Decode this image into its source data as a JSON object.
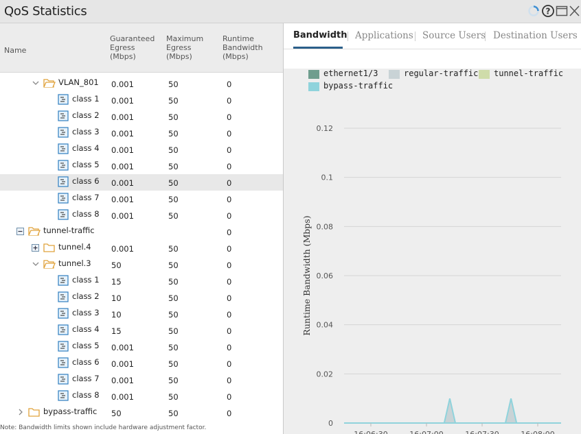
{
  "window": {
    "title": "QoS Statistics"
  },
  "table": {
    "headers": {
      "name": "Name",
      "guaranteed": "Guaranteed\nEgress\n(Mbps)",
      "maximum": "Maximum\nEgress\n(Mbps)",
      "runtime": "Runtime\nBandwidth\n(Mbps)"
    },
    "rows": [
      {
        "name": "VLAN_801",
        "g": "0.001",
        "m": "50",
        "r": "0"
      },
      {
        "name": "class 1",
        "g": "0.001",
        "m": "50",
        "r": "0"
      },
      {
        "name": "class 2",
        "g": "0.001",
        "m": "50",
        "r": "0"
      },
      {
        "name": "class 3",
        "g": "0.001",
        "m": "50",
        "r": "0"
      },
      {
        "name": "class 4",
        "g": "0.001",
        "m": "50",
        "r": "0"
      },
      {
        "name": "class 5",
        "g": "0.001",
        "m": "50",
        "r": "0"
      },
      {
        "name": "class 6",
        "g": "0.001",
        "m": "50",
        "r": "0"
      },
      {
        "name": "class 7",
        "g": "0.001",
        "m": "50",
        "r": "0"
      },
      {
        "name": "class 8",
        "g": "0.001",
        "m": "50",
        "r": "0"
      },
      {
        "name": "tunnel-traffic",
        "g": "",
        "m": "",
        "r": "0"
      },
      {
        "name": "tunnel.4",
        "g": "0.001",
        "m": "50",
        "r": "0"
      },
      {
        "name": "tunnel.3",
        "g": "50",
        "m": "50",
        "r": "0"
      },
      {
        "name": "class 1",
        "g": "15",
        "m": "50",
        "r": "0"
      },
      {
        "name": "class 2",
        "g": "10",
        "m": "50",
        "r": "0"
      },
      {
        "name": "class 3",
        "g": "10",
        "m": "50",
        "r": "0"
      },
      {
        "name": "class 4",
        "g": "15",
        "m": "50",
        "r": "0"
      },
      {
        "name": "class 5",
        "g": "0.001",
        "m": "50",
        "r": "0"
      },
      {
        "name": "class 6",
        "g": "0.001",
        "m": "50",
        "r": "0"
      },
      {
        "name": "class 7",
        "g": "0.001",
        "m": "50",
        "r": "0"
      },
      {
        "name": "class 8",
        "g": "0.001",
        "m": "50",
        "r": "0"
      },
      {
        "name": "bypass-traffic",
        "g": "50",
        "m": "50",
        "r": "0"
      }
    ],
    "note": "Note: Bandwidth limits shown include hardware adjustment factor."
  },
  "tabs": [
    "Bandwidth",
    "Applications",
    "Source Users",
    "Destination Users"
  ],
  "legend": [
    {
      "name": "ethernet1/3",
      "color": "#6f9e8e"
    },
    {
      "name": "regular-traffic",
      "color": "#c9d3d6"
    },
    {
      "name": "tunnel-traffic",
      "color": "#cfdcaa"
    },
    {
      "name": "bypass-traffic",
      "color": "#8fd3dc"
    }
  ],
  "chart_data": {
    "type": "area",
    "ylabel": "Runtime Bandwidth (Mbps)",
    "ylim": [
      0,
      0.12
    ],
    "yticks": [
      "0",
      "0.02",
      "0.04",
      "0.06",
      "0.08",
      "0.1",
      "0.12"
    ],
    "xticks": [
      "16:06:30",
      "16:07:00",
      "16:07:30",
      "16:08:00"
    ],
    "series": [
      {
        "name": "ethernet1/3",
        "values": [
          0,
          0,
          0,
          0,
          0,
          0,
          0,
          0,
          0,
          0,
          0,
          0,
          0,
          0,
          0,
          0,
          0,
          0,
          0,
          0,
          0,
          0,
          0,
          0,
          0,
          0,
          0,
          0,
          0,
          0,
          0,
          0,
          0,
          0,
          0,
          0,
          0,
          0,
          0,
          0
        ]
      },
      {
        "name": "regular-traffic",
        "values": [
          0,
          0,
          0,
          0,
          0,
          0,
          0,
          0,
          0,
          0,
          0,
          0,
          0,
          0,
          0,
          0,
          0,
          0,
          0,
          0.01,
          0,
          0,
          0,
          0,
          0,
          0,
          0,
          0,
          0,
          0,
          0.01,
          0,
          0,
          0,
          0,
          0,
          0,
          0,
          0,
          0
        ]
      },
      {
        "name": "tunnel-traffic",
        "values": [
          0,
          0,
          0,
          0,
          0,
          0,
          0,
          0,
          0,
          0,
          0,
          0,
          0,
          0,
          0,
          0,
          0,
          0,
          0,
          0,
          0,
          0,
          0,
          0,
          0,
          0,
          0,
          0,
          0,
          0,
          0,
          0,
          0,
          0,
          0,
          0,
          0,
          0,
          0,
          0
        ]
      },
      {
        "name": "bypass-traffic",
        "values": [
          0,
          0,
          0,
          0,
          0,
          0,
          0,
          0,
          0,
          0,
          0,
          0,
          0,
          0,
          0,
          0,
          0,
          0,
          0,
          0,
          0,
          0,
          0,
          0,
          0,
          0,
          0,
          0,
          0,
          0,
          0,
          0,
          0,
          0,
          0,
          0,
          0,
          0,
          0,
          0
        ]
      }
    ]
  }
}
